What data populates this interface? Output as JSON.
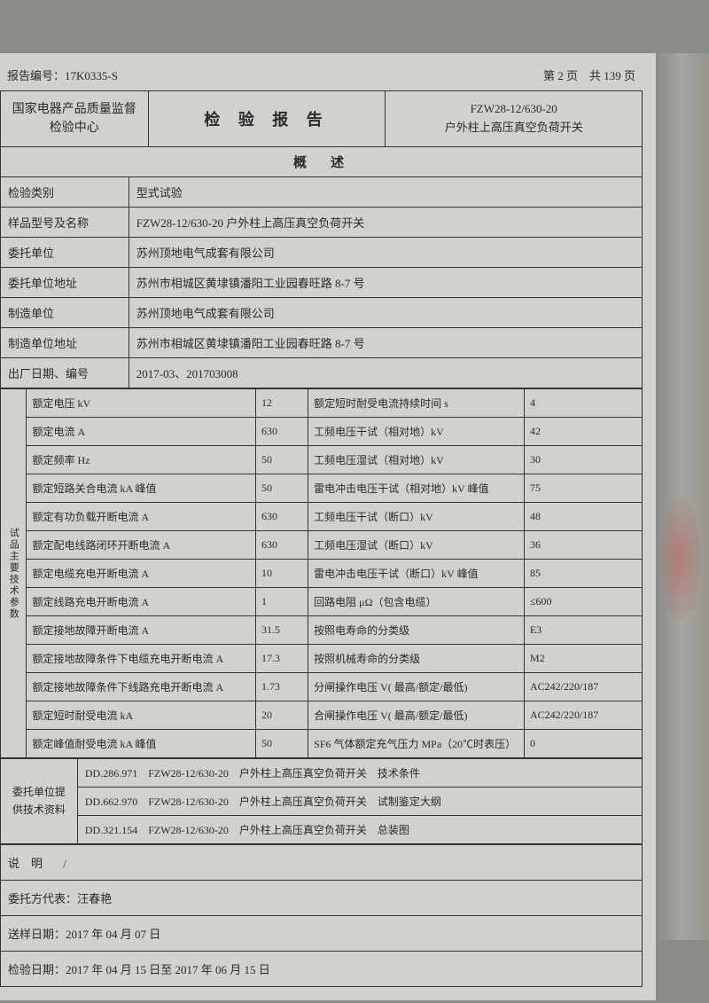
{
  "report_no_label": "报告编号：",
  "report_no": "17K0335-S",
  "page_info": "第 2 页　共 139 页",
  "header": {
    "org": "国家电器产品质量监督\n检验中心",
    "title": "检 验 报 告",
    "product_code": "FZW28-12/630-20",
    "product_desc": "户外柱上高压真空负荷开关"
  },
  "overview_title": "概　述",
  "info_rows": [
    {
      "label": "检验类别",
      "value": "型式试验"
    },
    {
      "label": "样品型号及名称",
      "value": "FZW28-12/630-20 户外柱上高压真空负荷开关"
    },
    {
      "label": "委托单位",
      "value": "苏州顶地电气成套有限公司"
    },
    {
      "label": "委托单位地址",
      "value": "苏州市相城区黄埭镇潘阳工业园春旺路 8-7 号"
    },
    {
      "label": "制造单位",
      "value": "苏州顶地电气成套有限公司"
    },
    {
      "label": "制造单位地址",
      "value": "苏州市相城区黄埭镇潘阳工业园春旺路 8-7 号"
    },
    {
      "label": "出厂日期、编号",
      "value": "2017-03、201703008"
    }
  ],
  "side_label_text": "试品主要技术参数",
  "spec_rows": [
    {
      "p1": "额定电压 kV",
      "v1": "12",
      "p2": "额定短时耐受电流持续时间 s",
      "v2": "4"
    },
    {
      "p1": "额定电流 A",
      "v1": "630",
      "p2": "工频电压干试（相对地）kV",
      "v2": "42"
    },
    {
      "p1": "额定频率 Hz",
      "v1": "50",
      "p2": "工频电压湿试（相对地）kV",
      "v2": "30"
    },
    {
      "p1": "额定短路关合电流 kA 峰值",
      "v1": "50",
      "p2": "雷电冲击电压干试（相对地）kV 峰值",
      "v2": "75"
    },
    {
      "p1": "额定有功负载开断电流 A",
      "v1": "630",
      "p2": "工频电压干试（断口）kV",
      "v2": "48"
    },
    {
      "p1": "额定配电线路闭环开断电流 A",
      "v1": "630",
      "p2": "工频电压湿试（断口）kV",
      "v2": "36"
    },
    {
      "p1": "额定电缆充电开断电流 A",
      "v1": "10",
      "p2": "雷电冲击电压干试（断口）kV 峰值",
      "v2": "85"
    },
    {
      "p1": "额定线路充电开断电流 A",
      "v1": "1",
      "p2": "回路电阻 μΩ（包含电缆）",
      "v2": "≤600"
    },
    {
      "p1": "额定接地故障开断电流 A",
      "v1": "31.5",
      "p2": "按照电寿命的分类级",
      "v2": "E3"
    },
    {
      "p1": "额定接地故障条件下电缆充电开断电流 A",
      "v1": "17.3",
      "p2": "按照机械寿命的分类级",
      "v2": "M2"
    },
    {
      "p1": "额定接地故障条件下线路充电开断电流 A",
      "v1": "1.73",
      "p2": "分闸操作电压 V( 最高/额定/最低)",
      "v2": "AC242/220/187"
    },
    {
      "p1": "额定短时耐受电流 kA",
      "v1": "20",
      "p2": "合闸操作电压 V( 最高/额定/最低)",
      "v2": "AC242/220/187"
    },
    {
      "p1": "额定峰值耐受电流 kA 峰值",
      "v1": "50",
      "p2": "SF6 气体额定充气压力 MPa（20℃时表压）",
      "v2": "0"
    }
  ],
  "doc_label": "委托单位提供技术资料",
  "doc_rows": [
    "DD.286.971　FZW28-12/630-20　户外柱上高压真空负荷开关　技术条件",
    "DD.662.970　FZW28-12/630-20　户外柱上高压真空负荷开关　试制鉴定大纲",
    "DD.321.154　FZW28-12/630-20　户外柱上高压真空负荷开关　总装图"
  ],
  "remarks_label": "说　明",
  "remarks_value": "/",
  "rep_label": "委托方代表：",
  "rep_name": "汪春艳",
  "send_date_label": "送样日期：",
  "send_date": "2017 年 04 月 07 日",
  "test_date_label": "检验日期：",
  "test_date": "2017 年 04 月 15 日至 2017 年 06 月 15 日"
}
